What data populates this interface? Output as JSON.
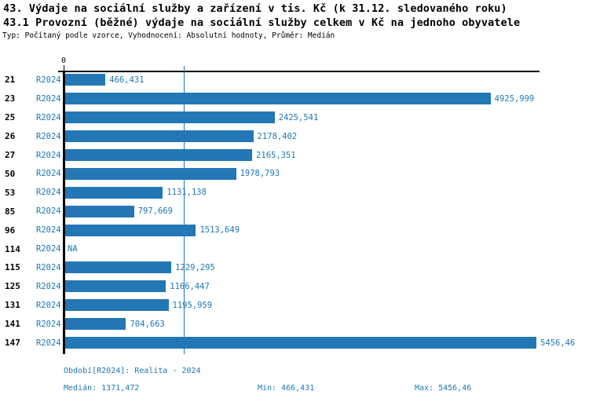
{
  "header": {
    "title1": "43. Výdaje na sociální služby a zařízení v tis. Kč (k 31.12. sledovaného roku)",
    "title2": "43.1 Provozní (běžné) výdaje na sociální služby celkem v Kč na jednoho obyvatele",
    "subtitle": "Typ: Počítaný podle vzorce, Vyhodnocení: Absolutní hodnoty, Průměr: Medián"
  },
  "colors": {
    "bar": "#2277b4",
    "blue_text": "#1f77b4",
    "axis": "#000000"
  },
  "chart_data": {
    "type": "bar",
    "orientation": "horizontal",
    "series_label": "R2024",
    "axis_zero_label": "0",
    "categories": [
      "21",
      "23",
      "25",
      "26",
      "27",
      "50",
      "53",
      "85",
      "96",
      "114",
      "115",
      "125",
      "131",
      "141",
      "147"
    ],
    "values": [
      466.431,
      4925.999,
      2425.541,
      2178.402,
      2165.351,
      1978.793,
      1131.138,
      797.669,
      1513.649,
      null,
      1229.295,
      1166.447,
      1195.959,
      704.663,
      5456.46
    ],
    "value_labels": [
      "466,431",
      "4925,999",
      "2425,541",
      "2178,402",
      "2165,351",
      "1978,793",
      "1131,138",
      "797,669",
      "1513,649",
      "NA",
      "1229,295",
      "1166,447",
      "1195,959",
      "704,663",
      "5456,46"
    ],
    "na_label": "NA",
    "xlim": [
      0,
      5510
    ],
    "median_value": 1371.472,
    "grid": false,
    "legend": false
  },
  "footer": {
    "period": "Období[R2024]: Realita - 2024",
    "median": "Medián: 1371,472",
    "min": "Min: 466,431",
    "max": "Max: 5456,46"
  }
}
